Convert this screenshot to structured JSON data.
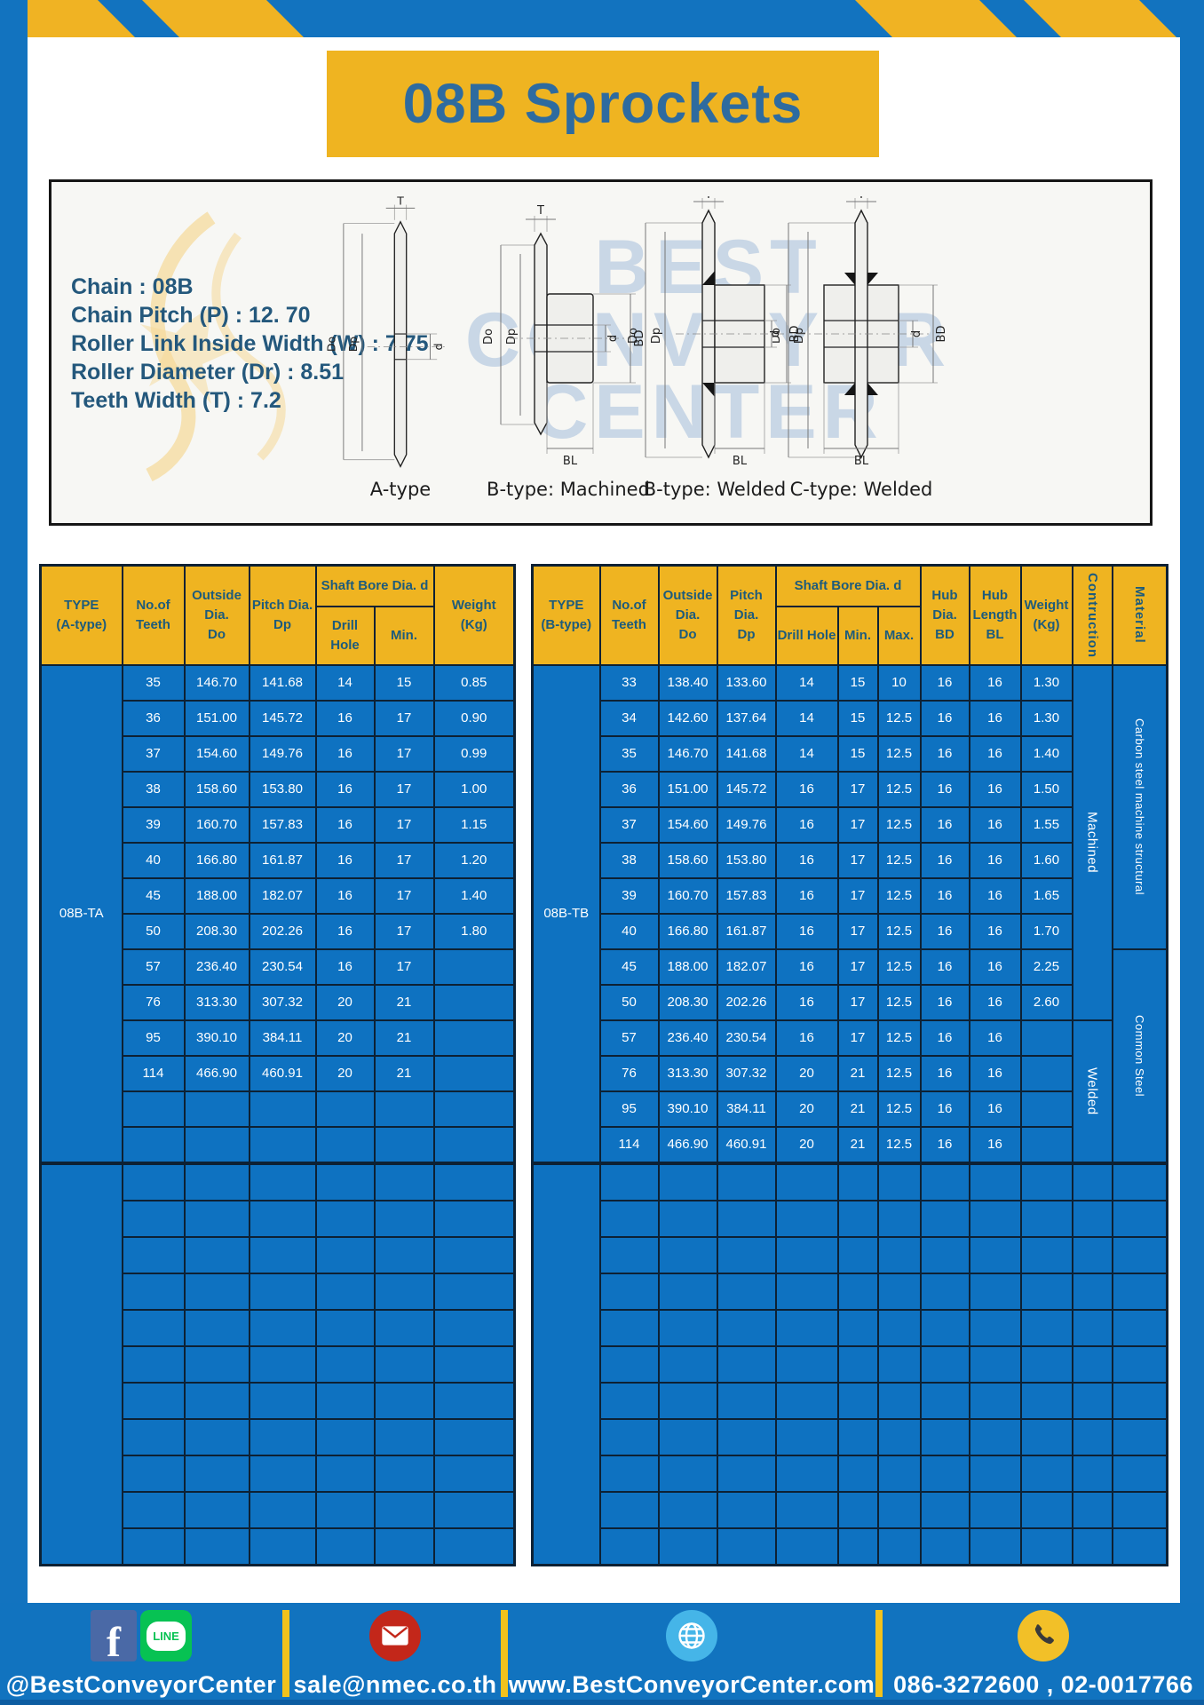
{
  "title": "08B Sprockets",
  "specs": {
    "lines": [
      "Chain : 08B",
      "Chain Pitch (P) : 12. 70",
      "Roller Link Inside Width (W) : 7.75",
      "Roller Diameter (Dr) : 8.51",
      "Teeth Width (T) : 7.2"
    ]
  },
  "watermark": {
    "line1": "BEST",
    "line2": "CONVEYOR",
    "line3": "CENTER"
  },
  "diagram": {
    "captions": [
      "A-type",
      "B-type: Machined",
      "B-type: Welded",
      "C-type: Welded"
    ],
    "dims": {
      "t": "T",
      "do": "Do",
      "dp": "Dp",
      "d": "d",
      "bd": "BD",
      "bl": "BL"
    }
  },
  "table_a": {
    "header": {
      "type": "TYPE\n(A-type)",
      "teeth": "No.of\nTeeth",
      "outside": "Outside\nDia.\nDo",
      "pitch": "Pitch Dia.\nDp",
      "shaft_group": "Shaft Bore Dia. d",
      "drill": "Drill Hole",
      "min": "Min.",
      "weight": "Weight\n(Kg)"
    },
    "type_label": "08B-TA",
    "rows": [
      [
        "35",
        "146.70",
        "141.68",
        "14",
        "15",
        "0.85"
      ],
      [
        "36",
        "151.00",
        "145.72",
        "16",
        "17",
        "0.90"
      ],
      [
        "37",
        "154.60",
        "149.76",
        "16",
        "17",
        "0.99"
      ],
      [
        "38",
        "158.60",
        "153.80",
        "16",
        "17",
        "1.00"
      ],
      [
        "39",
        "160.70",
        "157.83",
        "16",
        "17",
        "1.15"
      ],
      [
        "40",
        "166.80",
        "161.87",
        "16",
        "17",
        "1.20"
      ],
      [
        "45",
        "188.00",
        "182.07",
        "16",
        "17",
        "1.40"
      ],
      [
        "50",
        "208.30",
        "202.26",
        "16",
        "17",
        "1.80"
      ],
      [
        "57",
        "236.40",
        "230.54",
        "16",
        "17",
        ""
      ],
      [
        "76",
        "313.30",
        "307.32",
        "20",
        "21",
        ""
      ],
      [
        "95",
        "390.10",
        "384.11",
        "20",
        "21",
        ""
      ],
      [
        "114",
        "466.90",
        "460.91",
        "20",
        "21",
        ""
      ],
      [
        "",
        "",
        "",
        "",
        "",
        ""
      ],
      [
        "",
        "",
        "",
        "",
        "",
        ""
      ]
    ],
    "empty_row_count": 11
  },
  "table_b": {
    "header": {
      "type": "TYPE\n(B-type)",
      "teeth": "No.of\nTeeth",
      "outside": "Outside\nDia.\nDo",
      "pitch": "Pitch Dia.\nDp",
      "shaft_group": "Shaft Bore Dia. d",
      "drill": "Drill Hole",
      "min": "Min.",
      "max": "Max.",
      "hub_dia": "Hub Dia.\nBD",
      "hub_len": "Hub\nLength\nBL",
      "weight": "Weight\n(Kg)",
      "construction": "Contruction",
      "material": "Material"
    },
    "type_label": "08B-TB",
    "rows": [
      [
        "33",
        "138.40",
        "133.60",
        "14",
        "15",
        "10",
        "16",
        "16",
        "1.30"
      ],
      [
        "34",
        "142.60",
        "137.64",
        "14",
        "15",
        "12.5",
        "16",
        "16",
        "1.30"
      ],
      [
        "35",
        "146.70",
        "141.68",
        "14",
        "15",
        "12.5",
        "16",
        "16",
        "1.40"
      ],
      [
        "36",
        "151.00",
        "145.72",
        "16",
        "17",
        "12.5",
        "16",
        "16",
        "1.50"
      ],
      [
        "37",
        "154.60",
        "149.76",
        "16",
        "17",
        "12.5",
        "16",
        "16",
        "1.55"
      ],
      [
        "38",
        "158.60",
        "153.80",
        "16",
        "17",
        "12.5",
        "16",
        "16",
        "1.60"
      ],
      [
        "39",
        "160.70",
        "157.83",
        "16",
        "17",
        "12.5",
        "16",
        "16",
        "1.65"
      ],
      [
        "40",
        "166.80",
        "161.87",
        "16",
        "17",
        "12.5",
        "16",
        "16",
        "1.70"
      ],
      [
        "45",
        "188.00",
        "182.07",
        "16",
        "17",
        "12.5",
        "16",
        "16",
        "2.25"
      ],
      [
        "50",
        "208.30",
        "202.26",
        "16",
        "17",
        "12.5",
        "16",
        "16",
        "2.60"
      ],
      [
        "57",
        "236.40",
        "230.54",
        "16",
        "17",
        "12.5",
        "16",
        "16",
        ""
      ],
      [
        "76",
        "313.30",
        "307.32",
        "20",
        "21",
        "12.5",
        "16",
        "16",
        ""
      ],
      [
        "95",
        "390.10",
        "384.11",
        "20",
        "21",
        "12.5",
        "16",
        "16",
        ""
      ],
      [
        "114",
        "466.90",
        "460.91",
        "20",
        "21",
        "12.5",
        "16",
        "16",
        ""
      ]
    ],
    "construction": [
      {
        "label": "Machined",
        "span": 10
      },
      {
        "label": "Welded",
        "span": 4
      }
    ],
    "material": [
      {
        "label": "Carbon steel machine structural",
        "span": 8
      },
      {
        "label": "Common Steel",
        "span": 6
      }
    ],
    "empty_row_count": 11
  },
  "footer": {
    "fb_letter": "f",
    "line_text": "LINE",
    "social_handle": "@BestConveyorCenter",
    "email": "sale@nmec.co.th",
    "website": "www.BestConveyorCenter.com",
    "phones": "086-3272600 , 02-0017766"
  },
  "colors": {
    "frame_blue": "#1273bf",
    "stripe_yellow": "#f0b323",
    "cell_blue": "#0e72c1",
    "header_yellow": "#efb421",
    "header_text": "#1d5b7c",
    "grid_line": "#0d2134",
    "title_text": "#2e6b9f",
    "footer_blue": "#1173bf",
    "divider_yellow": "#f2c21c"
  }
}
